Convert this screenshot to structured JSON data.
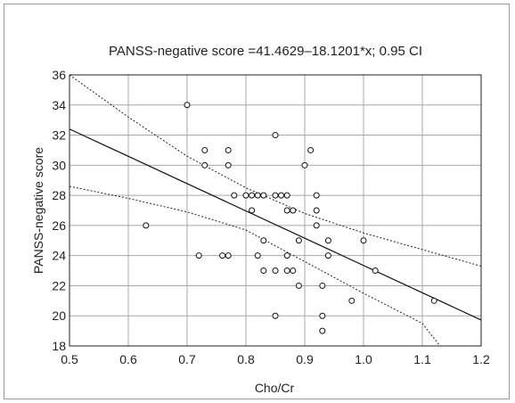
{
  "chart_data": {
    "type": "scatter",
    "title": "PANSS-negative score =41.4629–18.1201*x; 0.95 CI",
    "xlabel": "Cho/Cr",
    "ylabel": "PANSS-negative score",
    "xlim": [
      0.5,
      1.2
    ],
    "ylim": [
      18,
      36
    ],
    "xticks": [
      "0.5",
      "0.6",
      "0.7",
      "0.8",
      "0.9",
      "1.0",
      "1.1",
      "1.2"
    ],
    "yticks": [
      "18",
      "20",
      "22",
      "24",
      "26",
      "28",
      "30",
      "32",
      "34",
      "36"
    ],
    "grid": true,
    "regression": {
      "intercept": 41.4629,
      "slope": -18.1201
    },
    "ci_upper": [
      [
        0.5,
        36.0
      ],
      [
        0.6,
        33.2
      ],
      [
        0.7,
        30.6
      ],
      [
        0.8,
        28.5
      ],
      [
        0.9,
        26.8
      ],
      [
        1.0,
        25.5
      ],
      [
        1.1,
        24.4
      ],
      [
        1.2,
        23.3
      ]
    ],
    "ci_lower": [
      [
        0.5,
        28.6
      ],
      [
        0.6,
        27.8
      ],
      [
        0.7,
        26.9
      ],
      [
        0.8,
        25.7
      ],
      [
        0.9,
        23.6
      ],
      [
        1.0,
        21.5
      ],
      [
        1.1,
        19.5
      ],
      [
        1.13,
        18.0
      ]
    ],
    "points": [
      {
        "x": 0.63,
        "y": 26
      },
      {
        "x": 0.7,
        "y": 34
      },
      {
        "x": 0.72,
        "y": 24
      },
      {
        "x": 0.73,
        "y": 31
      },
      {
        "x": 0.73,
        "y": 30
      },
      {
        "x": 0.76,
        "y": 24
      },
      {
        "x": 0.77,
        "y": 24
      },
      {
        "x": 0.77,
        "y": 31
      },
      {
        "x": 0.77,
        "y": 30
      },
      {
        "x": 0.78,
        "y": 28
      },
      {
        "x": 0.8,
        "y": 28
      },
      {
        "x": 0.81,
        "y": 28
      },
      {
        "x": 0.81,
        "y": 27
      },
      {
        "x": 0.82,
        "y": 28
      },
      {
        "x": 0.82,
        "y": 24
      },
      {
        "x": 0.83,
        "y": 28
      },
      {
        "x": 0.83,
        "y": 25
      },
      {
        "x": 0.83,
        "y": 23
      },
      {
        "x": 0.85,
        "y": 32
      },
      {
        "x": 0.85,
        "y": 28
      },
      {
        "x": 0.85,
        "y": 23
      },
      {
        "x": 0.85,
        "y": 20
      },
      {
        "x": 0.86,
        "y": 28
      },
      {
        "x": 0.87,
        "y": 28
      },
      {
        "x": 0.87,
        "y": 27
      },
      {
        "x": 0.87,
        "y": 24
      },
      {
        "x": 0.87,
        "y": 23
      },
      {
        "x": 0.88,
        "y": 27
      },
      {
        "x": 0.88,
        "y": 23
      },
      {
        "x": 0.89,
        "y": 25
      },
      {
        "x": 0.89,
        "y": 22
      },
      {
        "x": 0.9,
        "y": 30
      },
      {
        "x": 0.91,
        "y": 31
      },
      {
        "x": 0.92,
        "y": 28
      },
      {
        "x": 0.92,
        "y": 27
      },
      {
        "x": 0.92,
        "y": 26
      },
      {
        "x": 0.93,
        "y": 22
      },
      {
        "x": 0.93,
        "y": 20
      },
      {
        "x": 0.93,
        "y": 19
      },
      {
        "x": 0.94,
        "y": 25
      },
      {
        "x": 0.94,
        "y": 24
      },
      {
        "x": 0.98,
        "y": 21
      },
      {
        "x": 1.0,
        "y": 25
      },
      {
        "x": 1.02,
        "y": 23
      },
      {
        "x": 1.12,
        "y": 21
      }
    ]
  }
}
